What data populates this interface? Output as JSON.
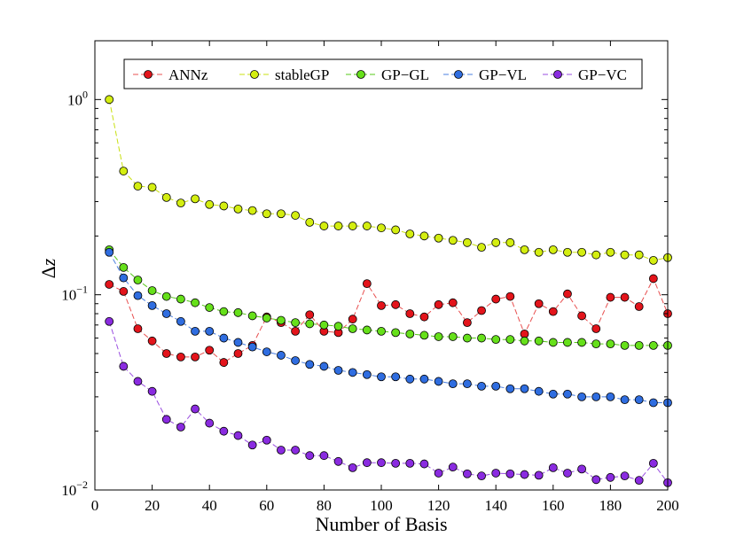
{
  "chart_data": {
    "type": "line",
    "title": "",
    "xlabel": "Number of Basis",
    "ylabel": "Δz",
    "ylabel_delta": "Δ",
    "ylabel_var": "z",
    "xscale": "linear",
    "yscale": "log",
    "xlim": [
      0,
      200
    ],
    "ylim": [
      0.01,
      2.0
    ],
    "x_ticks": [
      0,
      20,
      40,
      60,
      80,
      100,
      120,
      140,
      160,
      180,
      200
    ],
    "x_tick_labels": [
      "0",
      "20",
      "40",
      "60",
      "80",
      "100",
      "120",
      "140",
      "160",
      "180",
      "200"
    ],
    "y_ticks": [
      0.01,
      0.1,
      1
    ],
    "y_tick_bases": [
      "10",
      "10",
      "10"
    ],
    "y_tick_exponents": [
      "−2",
      "−1",
      "0"
    ],
    "legend_position": "top",
    "x": [
      5,
      10,
      15,
      20,
      25,
      30,
      35,
      40,
      45,
      50,
      55,
      60,
      65,
      70,
      75,
      80,
      85,
      90,
      95,
      100,
      105,
      110,
      115,
      120,
      125,
      130,
      135,
      140,
      145,
      150,
      155,
      160,
      165,
      170,
      175,
      180,
      185,
      190,
      195,
      200
    ],
    "series": [
      {
        "name": "ANNz",
        "color": "#e3141b",
        "line_color": "#e85050",
        "values": [
          0.113,
          0.104,
          0.067,
          0.058,
          0.05,
          0.048,
          0.048,
          0.052,
          0.045,
          0.05,
          0.055,
          0.077,
          0.072,
          0.065,
          0.079,
          0.065,
          0.064,
          0.075,
          0.114,
          0.088,
          0.089,
          0.08,
          0.077,
          0.089,
          0.091,
          0.072,
          0.083,
          0.095,
          0.098,
          0.063,
          0.09,
          0.082,
          0.101,
          0.078,
          0.067,
          0.097,
          0.097,
          0.087,
          0.121,
          0.08
        ]
      },
      {
        "name": "stableGP",
        "color": "#d4ee10",
        "line_color": "#c8e010",
        "values": [
          1.0,
          0.43,
          0.36,
          0.355,
          0.315,
          0.295,
          0.31,
          0.29,
          0.285,
          0.275,
          0.27,
          0.26,
          0.26,
          0.255,
          0.235,
          0.225,
          0.225,
          0.225,
          0.225,
          0.22,
          0.215,
          0.205,
          0.2,
          0.195,
          0.19,
          0.185,
          0.175,
          0.185,
          0.185,
          0.17,
          0.165,
          0.17,
          0.165,
          0.165,
          0.16,
          0.165,
          0.16,
          0.16,
          0.15,
          0.155
        ]
      },
      {
        "name": "GP−GL",
        "color": "#66e01a",
        "line_color": "#55c818",
        "values": [
          0.17,
          0.138,
          0.119,
          0.105,
          0.098,
          0.095,
          0.091,
          0.086,
          0.082,
          0.081,
          0.078,
          0.076,
          0.074,
          0.072,
          0.071,
          0.07,
          0.069,
          0.067,
          0.066,
          0.065,
          0.064,
          0.063,
          0.062,
          0.061,
          0.061,
          0.06,
          0.06,
          0.059,
          0.059,
          0.058,
          0.058,
          0.057,
          0.057,
          0.057,
          0.056,
          0.056,
          0.055,
          0.055,
          0.055,
          0.055
        ]
      },
      {
        "name": "GP−VL",
        "color": "#2f6de0",
        "line_color": "#4a7fe0",
        "values": [
          0.165,
          0.122,
          0.099,
          0.088,
          0.08,
          0.073,
          0.065,
          0.065,
          0.06,
          0.057,
          0.054,
          0.051,
          0.049,
          0.046,
          0.044,
          0.043,
          0.041,
          0.04,
          0.039,
          0.038,
          0.038,
          0.037,
          0.037,
          0.036,
          0.035,
          0.035,
          0.034,
          0.034,
          0.033,
          0.033,
          0.032,
          0.031,
          0.031,
          0.03,
          0.03,
          0.03,
          0.029,
          0.029,
          0.028,
          0.028
        ]
      },
      {
        "name": "GP−VC",
        "color": "#8a2be0",
        "line_color": "#9a4ee0",
        "values": [
          0.073,
          0.043,
          0.036,
          0.032,
          0.023,
          0.021,
          0.026,
          0.022,
          0.02,
          0.019,
          0.017,
          0.018,
          0.016,
          0.016,
          0.015,
          0.015,
          0.014,
          0.013,
          0.0138,
          0.0138,
          0.0137,
          0.0137,
          0.0136,
          0.0122,
          0.0131,
          0.0121,
          0.0118,
          0.0122,
          0.0121,
          0.012,
          0.0119,
          0.013,
          0.0122,
          0.0128,
          0.0113,
          0.0116,
          0.0118,
          0.0112,
          0.0137,
          0.0109
        ]
      }
    ]
  }
}
